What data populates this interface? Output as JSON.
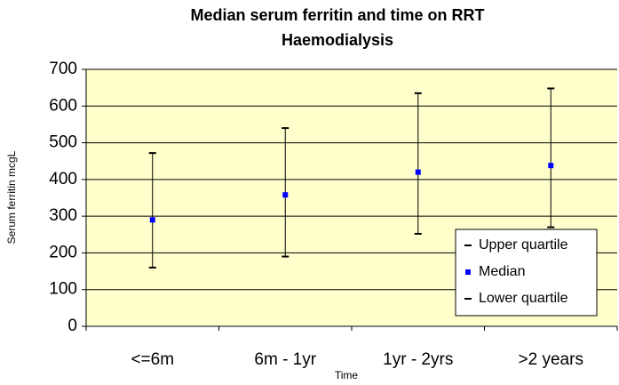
{
  "chart_data": {
    "type": "errorbar",
    "title": "Median serum ferritin and time on RRT",
    "subtitle": "Haemodialysis",
    "x_label": "Time",
    "y_label": "Serum ferritin mcgL",
    "categories": [
      "<=6m",
      "6m - 1yr",
      "1yr - 2yrs",
      ">2 years"
    ],
    "series": [
      {
        "name": "Upper quartile",
        "color": "#000000",
        "values": [
          472,
          540,
          635,
          648
        ]
      },
      {
        "name": "Median",
        "color": "#0000ff",
        "values": [
          290,
          358,
          420,
          438
        ]
      },
      {
        "name": "Lower quartile",
        "color": "#000000",
        "values": [
          160,
          190,
          252,
          270
        ]
      }
    ],
    "ylim": [
      0,
      700
    ],
    "yticks": [
      0,
      100,
      200,
      300,
      400,
      500,
      600,
      700
    ],
    "grid": true,
    "legend": "lower right",
    "background": "#ffffcc"
  }
}
